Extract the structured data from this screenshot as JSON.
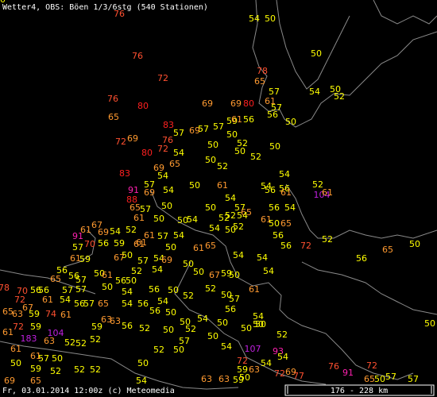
{
  "header": {
    "title": "Wetter4, OBS: Böen 1/3/6stg (540 Stationen)"
  },
  "stations": [
    76,
    54,
    50,
    50,
    76,
    72,
    78,
    65,
    57,
    61,
    57,
    54,
    50,
    52,
    76,
    80,
    69,
    69,
    80,
    65,
    56,
    83,
    59,
    61,
    56,
    50,
    72,
    69,
    76,
    57,
    69,
    57,
    57,
    50,
    80,
    72,
    54,
    50,
    52,
    50,
    50,
    52,
    65,
    69,
    50,
    52,
    83,
    54,
    54,
    57,
    54,
    50,
    61,
    54,
    56,
    56,
    52,
    91,
    69,
    104,
    61,
    61,
    88,
    65,
    57,
    50,
    50,
    54,
    52,
    57,
    65,
    56,
    54,
    61,
    50,
    50,
    54,
    52,
    54,
    61,
    50,
    65,
    91,
    67,
    61,
    69,
    54,
    52,
    61,
    54,
    50,
    52,
    61,
    57,
    54,
    56,
    52,
    57,
    70,
    56,
    59,
    61,
    50,
    61,
    65,
    56,
    72,
    61,
    59,
    67,
    50,
    57,
    54,
    69,
    50,
    54,
    54,
    65,
    50,
    56,
    56,
    50,
    52,
    54,
    63,
    65,
    56,
    57,
    61,
    56,
    50,
    50,
    67,
    59,
    50,
    54,
    70,
    56,
    56,
    57,
    57,
    50,
    54,
    56,
    50,
    52,
    61,
    78,
    72,
    61,
    54,
    56,
    57,
    65,
    54,
    56,
    54,
    52,
    50,
    57,
    65,
    67,
    63,
    59,
    74,
    61,
    56,
    50,
    56,
    63,
    54,
    50,
    54,
    72,
    59,
    59,
    56,
    52,
    50,
    50,
    52,
    50,
    50,
    61,
    104,
    52,
    57,
    50,
    52,
    50,
    183,
    63,
    52,
    52,
    61,
    52,
    50,
    54,
    107,
    93,
    72,
    54,
    50,
    61,
    50,
    57,
    52,
    50,
    59,
    54,
    72,
    69,
    76,
    91,
    72,
    50,
    59,
    52,
    52,
    50,
    63,
    77,
    69,
    65,
    54,
    63,
    63,
    59,
    65,
    50,
    57,
    57,
    50
  ],
  "footer": {
    "date": "Fr, 03.01.2014 12:00z (c) Meteomedia",
    "scale": "176 - 228 km"
  }
}
